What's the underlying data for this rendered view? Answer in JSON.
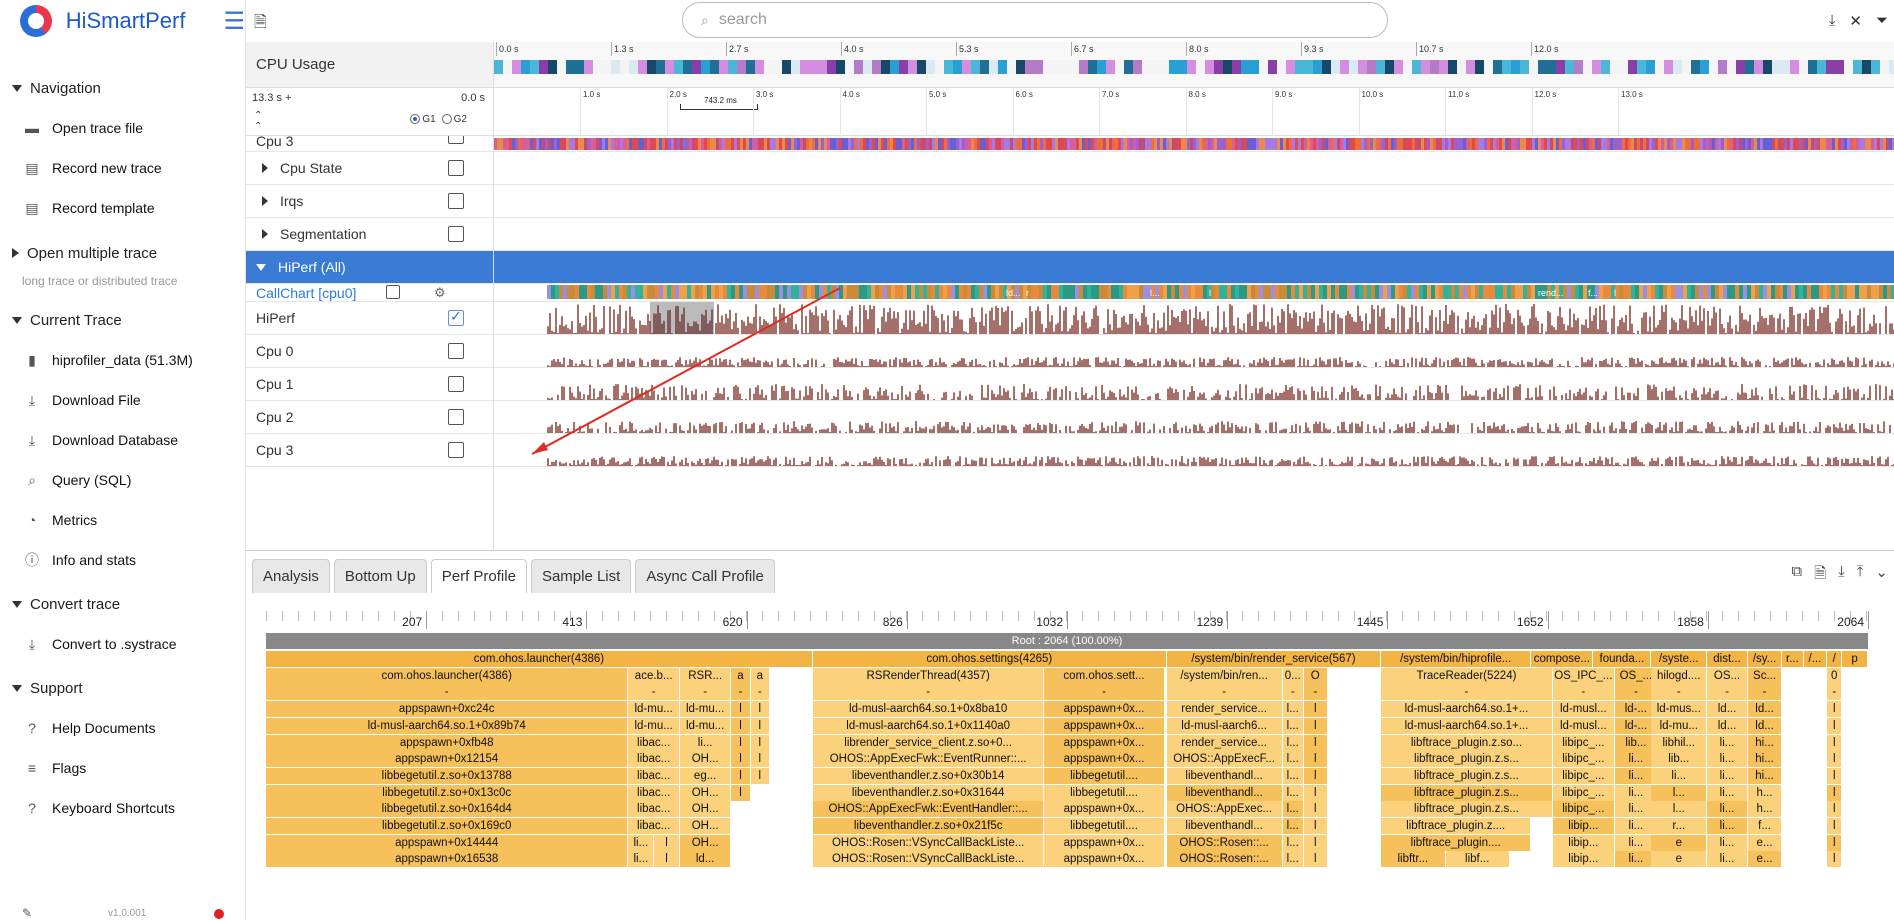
{
  "app": {
    "title": "HiSmartPerf",
    "version": "v1.0.001"
  },
  "sidebar": {
    "navigation": {
      "title": "Navigation",
      "items": [
        {
          "label": "Open trace file",
          "icon": "folder-icon"
        },
        {
          "label": "Record new trace",
          "icon": "record-icon"
        },
        {
          "label": "Record template",
          "icon": "template-icon"
        }
      ]
    },
    "multi": {
      "title": "Open multiple trace",
      "note": "long trace or distributed trace"
    },
    "current": {
      "title": "Current Trace",
      "items": [
        {
          "label": "hiprofiler_data (51.3M)",
          "icon": "file-icon"
        },
        {
          "label": "Download File",
          "icon": "download-icon"
        },
        {
          "label": "Download Database",
          "icon": "download-icon"
        },
        {
          "label": "Query (SQL)",
          "icon": "query-icon"
        },
        {
          "label": "Metrics",
          "icon": "metrics-icon"
        },
        {
          "label": "Info and stats",
          "icon": "info-icon"
        }
      ]
    },
    "convert": {
      "title": "Convert trace",
      "items": [
        {
          "label": "Convert to .systrace",
          "icon": "download-icon"
        }
      ]
    },
    "support": {
      "title": "Support",
      "items": [
        {
          "label": "Help Documents",
          "icon": "help-icon"
        },
        {
          "label": "Flags",
          "icon": "flags-icon"
        },
        {
          "label": "Keyboard Shortcuts",
          "icon": "help-icon"
        }
      ]
    }
  },
  "search": {
    "placeholder": "search"
  },
  "trace": {
    "cpu_usage_label": "CPU Usage",
    "range_left": "13.3 s +",
    "range_right": "0.0 s",
    "g1": "G1",
    "g2": "G2",
    "selection_label": "743.2 ms",
    "top_ticks": [
      "0.0 s",
      "1.3 s",
      "2.7 s",
      "4.0 s",
      "5.3 s",
      "6.7 s",
      "8.0 s",
      "9.3 s",
      "10.7 s",
      "12.0 s"
    ],
    "second_ticks": [
      "1.0 s",
      "2.0 s",
      "3.0 s",
      "4.0 s",
      "5.0 s",
      "6.0 s",
      "7.0 s",
      "8.0 s",
      "9.0 s",
      "10.0 s",
      "11.0 s",
      "12.0 s",
      "13.0 s"
    ],
    "rows": {
      "cpu3_top": "Cpu 3",
      "cpu_state": "Cpu State",
      "irqs": "Irqs",
      "segmentation": "Segmentation",
      "hiperf": "HiPerf (All)",
      "callchart": "CallChart [cpu0]",
      "hiperf_track": "HiPerf",
      "cpu0": "Cpu 0",
      "cpu1": "Cpu 1",
      "cpu2": "Cpu 2",
      "cpu3": "Cpu 3"
    },
    "callchart_labels": [
      "ld...",
      "r",
      "l...",
      "l",
      "rend...",
      "f...",
      "l"
    ],
    "colors": {
      "hiperf_bar": "#3a7bd5",
      "perf_sample": "#a56f6a",
      "arrow": "#e02b20"
    }
  },
  "bottom": {
    "tabs": [
      "Analysis",
      "Bottom Up",
      "Perf Profile",
      "Sample List",
      "Async Call Profile"
    ],
    "active_tab": "Perf Profile",
    "ruler_labels": [
      "207",
      "413",
      "620",
      "826",
      "1032",
      "1239",
      "1445",
      "1652",
      "1858",
      "2064"
    ],
    "root": "Root : 2064 (100.00%)",
    "flame_rows": [
      [
        [
          "com.ohos.launcher(4386)",
          0,
          510
        ],
        [
          "com.ohos.settings(4265)",
          510,
          330
        ],
        [
          "/system/bin/render_service(567)",
          840,
          200
        ],
        [
          "/system/bin/hiprofile...",
          1040,
          140
        ],
        [
          "compose...",
          1180,
          58
        ],
        [
          "founda...",
          1238,
          54
        ],
        [
          "/syste...",
          1292,
          52
        ],
        [
          "dist...",
          1344,
          38
        ],
        [
          "/sy...",
          1382,
          32
        ],
        [
          "r...",
          1414,
          20
        ],
        [
          "/...",
          1434,
          22
        ],
        [
          "/",
          1456,
          14
        ],
        [
          "p",
          1470,
          24
        ]
      ],
      [
        [
          "com.ohos.launcher(4386)",
          0,
          338
        ],
        [
          "ace.b...",
          338,
          48
        ],
        [
          "RSR...",
          386,
          48
        ],
        [
          "a",
          434,
          18
        ],
        [
          "a",
          452,
          18
        ],
        [
          "RSRenderThread(4357)",
          510,
          216
        ],
        [
          "com.ohos.sett...",
          726,
          112
        ],
        [
          "/system/bin/ren...",
          840,
          108
        ],
        [
          "0...",
          948,
          20
        ],
        [
          "O",
          968,
          22
        ],
        [
          "TraceReader(5224)",
          1040,
          160
        ],
        [
          "OS_IPC_...",
          1200,
          58
        ],
        [
          "OS_...",
          1258,
          40
        ],
        [
          "hilogd....",
          1292,
          52
        ],
        [
          "OS...",
          1344,
          38
        ],
        [
          "Sc...",
          1382,
          32
        ],
        [
          "0",
          1456,
          14
        ]
      ],
      [
        [
          "-",
          0,
          338
        ],
        [
          "-",
          338,
          48
        ],
        [
          "-",
          386,
          48
        ],
        [
          "-",
          434,
          18
        ],
        [
          "-",
          452,
          18
        ],
        [
          "-",
          510,
          216
        ],
        [
          "-",
          726,
          112
        ],
        [
          "-",
          840,
          108
        ],
        [
          "-",
          948,
          20
        ],
        [
          "-",
          968,
          22
        ],
        [
          "-",
          1040,
          160
        ],
        [
          "-",
          1200,
          58
        ],
        [
          "-",
          1258,
          40
        ],
        [
          "-",
          1292,
          52
        ],
        [
          "-",
          1344,
          38
        ],
        [
          "-",
          1382,
          32
        ],
        [
          "-",
          1456,
          14
        ]
      ],
      [
        [
          "appspawn+0xc24c",
          0,
          338
        ],
        [
          "ld-mu...",
          338,
          48
        ],
        [
          "ld-mu...",
          386,
          48
        ],
        [
          "l",
          434,
          18
        ],
        [
          "l",
          452,
          18
        ],
        [
          "ld-musl-aarch64.so.1+0x8ba10",
          510,
          216
        ],
        [
          "appspawn+0x...",
          726,
          112
        ],
        [
          "render_service...",
          840,
          108
        ],
        [
          "l...",
          948,
          20
        ],
        [
          "l",
          968,
          22
        ],
        [
          "ld-musl-aarch64.so.1+...",
          1040,
          160
        ],
        [
          "ld-musl...",
          1200,
          58
        ],
        [
          "ld-...",
          1258,
          40
        ],
        [
          "ld-mus...",
          1292,
          52
        ],
        [
          "ld...",
          1344,
          38
        ],
        [
          "ld...",
          1382,
          32
        ],
        [
          "l",
          1456,
          14
        ]
      ],
      [
        [
          "ld-musl-aarch64.so.1+0x89b74",
          0,
          338
        ],
        [
          "ld-mu...",
          338,
          48
        ],
        [
          "ld-mu...",
          386,
          48
        ],
        [
          "l",
          434,
          18
        ],
        [
          "l",
          452,
          18
        ],
        [
          "ld-musl-aarch64.so.1+0x1140a0",
          510,
          216
        ],
        [
          "appspawn+0x...",
          726,
          112
        ],
        [
          "ld-musl-aarch6...",
          840,
          108
        ],
        [
          "l...",
          948,
          20
        ],
        [
          "l",
          968,
          22
        ],
        [
          "ld-musl-aarch64.so.1+...",
          1040,
          160
        ],
        [
          "ld-musl...",
          1200,
          58
        ],
        [
          "ld-...",
          1258,
          40
        ],
        [
          "ld-mu...",
          1292,
          52
        ],
        [
          "ld...",
          1344,
          38
        ],
        [
          "ld...",
          1382,
          32
        ],
        [
          "l",
          1456,
          14
        ]
      ],
      [
        [
          "appspawn+0xfb48",
          0,
          338
        ],
        [
          "libac...",
          338,
          48
        ],
        [
          "li...",
          386,
          48
        ],
        [
          "l",
          434,
          18
        ],
        [
          "l",
          452,
          18
        ],
        [
          "librender_service_client.z.so+0...",
          510,
          216
        ],
        [
          "appspawn+0x...",
          726,
          112
        ],
        [
          "render_service...",
          840,
          108
        ],
        [
          "l...",
          948,
          20
        ],
        [
          "l",
          968,
          22
        ],
        [
          "libftrace_plugin.z.so...",
          1040,
          160
        ],
        [
          "libipc_...",
          1200,
          58
        ],
        [
          "lib...",
          1258,
          40
        ],
        [
          "libhil...",
          1292,
          52
        ],
        [
          "li...",
          1344,
          38
        ],
        [
          "hi...",
          1382,
          32
        ],
        [
          "l",
          1456,
          14
        ]
      ],
      [
        [
          "appspawn+0x12154",
          0,
          338
        ],
        [
          "libac...",
          338,
          48
        ],
        [
          "OH...",
          386,
          48
        ],
        [
          "l",
          434,
          18
        ],
        [
          "l",
          452,
          18
        ],
        [
          "OHOS::AppExecFwk::EventRunner::...",
          510,
          216
        ],
        [
          "appspawn+0x...",
          726,
          112
        ],
        [
          "OHOS::AppExecF...",
          840,
          108
        ],
        [
          "l...",
          948,
          20
        ],
        [
          "l",
          968,
          22
        ],
        [
          "libftrace_plugin.z.s...",
          1040,
          160
        ],
        [
          "libipc_...",
          1200,
          58
        ],
        [
          "li...",
          1258,
          40
        ],
        [
          "lib...",
          1292,
          52
        ],
        [
          "li...",
          1344,
          38
        ],
        [
          "hi...",
          1382,
          32
        ],
        [
          "l",
          1456,
          14
        ]
      ],
      [
        [
          "libbegetutil.z.so+0x13788",
          0,
          338
        ],
        [
          "libac...",
          338,
          48
        ],
        [
          "eg...",
          386,
          48
        ],
        [
          "l",
          434,
          18
        ],
        [
          "l",
          452,
          18
        ],
        [
          "libeventhandler.z.so+0x30b14",
          510,
          216
        ],
        [
          "libbegetutil....",
          726,
          112
        ],
        [
          "libeventhandl...",
          840,
          108
        ],
        [
          "l...",
          948,
          20
        ],
        [
          "l",
          968,
          22
        ],
        [
          "libftrace_plugin.z.s...",
          1040,
          160
        ],
        [
          "libipc_...",
          1200,
          58
        ],
        [
          "li...",
          1258,
          40
        ],
        [
          "li...",
          1292,
          52
        ],
        [
          "li...",
          1344,
          38
        ],
        [
          "hi...",
          1382,
          32
        ],
        [
          "l",
          1456,
          14
        ]
      ],
      [
        [
          "libbegetutil.z.so+0x13c0c",
          0,
          338
        ],
        [
          "libac...",
          338,
          48
        ],
        [
          "OH...",
          386,
          48
        ],
        [
          "l",
          434,
          18
        ],
        [
          "libeventhandler.z.so+0x31644",
          510,
          216
        ],
        [
          "libbegetutil....",
          726,
          112
        ],
        [
          "libeventhandl...",
          840,
          108
        ],
        [
          "l...",
          948,
          20
        ],
        [
          "l",
          968,
          22
        ],
        [
          "libftrace_plugin.z.s...",
          1040,
          160
        ],
        [
          "libipc_...",
          1200,
          58
        ],
        [
          "li...",
          1258,
          40
        ],
        [
          "l...",
          1292,
          52
        ],
        [
          "li...",
          1344,
          38
        ],
        [
          "h...",
          1382,
          32
        ],
        [
          "l",
          1456,
          14
        ]
      ],
      [
        [
          "libbegetutil.z.so+0x164d4",
          0,
          338
        ],
        [
          "libac...",
          338,
          48
        ],
        [
          "OH...",
          386,
          48
        ],
        [
          "OHOS::AppExecFwk::EventHandler::...",
          510,
          216
        ],
        [
          "appspawn+0x...",
          726,
          112
        ],
        [
          "OHOS::AppExec...",
          840,
          108
        ],
        [
          "l...",
          948,
          20
        ],
        [
          "l",
          968,
          22
        ],
        [
          "libftrace_plugin.z.s...",
          1040,
          160
        ],
        [
          "libipc_...",
          1200,
          58
        ],
        [
          "li...",
          1258,
          40
        ],
        [
          "l...",
          1292,
          52
        ],
        [
          "li...",
          1344,
          38
        ],
        [
          "h...",
          1382,
          32
        ],
        [
          "l",
          1456,
          14
        ]
      ],
      [
        [
          "libbegetutil.z.so+0x169c0",
          0,
          338
        ],
        [
          "libac...",
          338,
          48
        ],
        [
          "OH...",
          386,
          48
        ],
        [
          "libeventhandler.z.so+0x21f5c",
          510,
          216
        ],
        [
          "libbegetutil....",
          726,
          112
        ],
        [
          "libeventhandl...",
          840,
          108
        ],
        [
          "l...",
          948,
          20
        ],
        [
          "l",
          968,
          22
        ],
        [
          "libftrace_plugin.z....",
          1040,
          140
        ],
        [
          "libip...",
          1200,
          58
        ],
        [
          "li...",
          1258,
          40
        ],
        [
          "r...",
          1292,
          52
        ],
        [
          "li...",
          1344,
          38
        ],
        [
          "f...",
          1382,
          32
        ],
        [
          "l",
          1456,
          14
        ]
      ],
      [
        [
          "appspawn+0x14444",
          0,
          338
        ],
        [
          "li...",
          338,
          24
        ],
        [
          "l",
          362,
          24
        ],
        [
          "OH...",
          386,
          48
        ],
        [
          "OHOS::Rosen::VSyncCallBackListe...",
          510,
          216
        ],
        [
          "appspawn+0x...",
          726,
          112
        ],
        [
          "OHOS::Rosen::...",
          840,
          108
        ],
        [
          "l...",
          948,
          20
        ],
        [
          "l",
          968,
          22
        ],
        [
          "libftrace_plugin....",
          1040,
          140
        ],
        [
          "libip...",
          1200,
          58
        ],
        [
          "li...",
          1258,
          40
        ],
        [
          "e",
          1292,
          52
        ],
        [
          "li...",
          1344,
          38
        ],
        [
          "e...",
          1382,
          32
        ],
        [
          "l",
          1456,
          14
        ]
      ],
      [
        [
          "appspawn+0x16538",
          0,
          338
        ],
        [
          "li...",
          338,
          24
        ],
        [
          "l",
          362,
          24
        ],
        [
          "ld...",
          386,
          48
        ],
        [
          "OHOS::Rosen::VSyncCallBackListe...",
          510,
          216
        ],
        [
          "appspawn+0x...",
          726,
          112
        ],
        [
          "OHOS::Rosen::...",
          840,
          108
        ],
        [
          "l...",
          948,
          20
        ],
        [
          "l",
          968,
          22
        ],
        [
          "libftr...",
          1040,
          60
        ],
        [
          "libf...",
          1100,
          60
        ],
        [
          "libip...",
          1200,
          58
        ],
        [
          "li...",
          1258,
          40
        ],
        [
          "e",
          1292,
          52
        ],
        [
          "li...",
          1344,
          38
        ],
        [
          "e...",
          1382,
          32
        ],
        [
          "l",
          1456,
          14
        ]
      ]
    ]
  }
}
